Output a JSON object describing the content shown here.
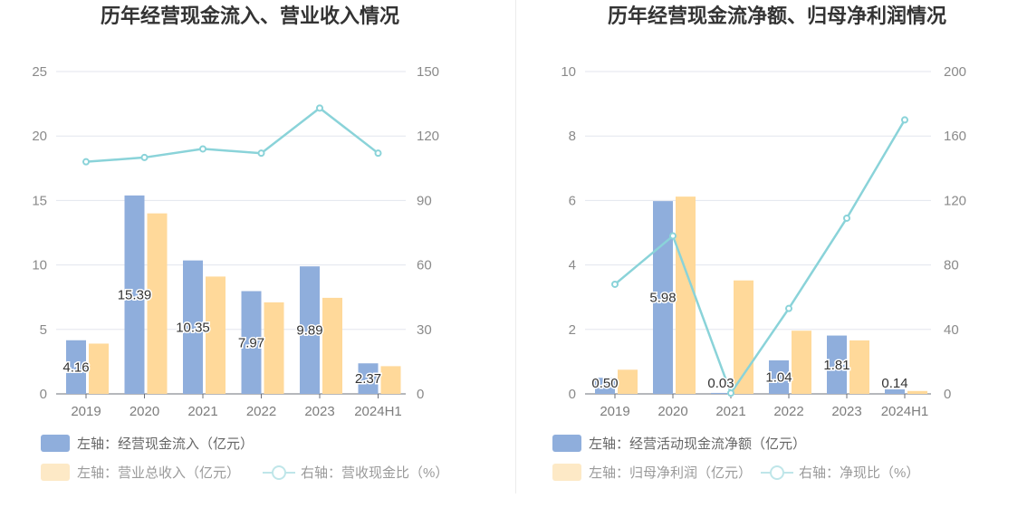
{
  "chart_data": [
    {
      "type": "bar",
      "title": "历年经营现金流入、营业收入情况",
      "categories": [
        "2019",
        "2020",
        "2021",
        "2022",
        "2023",
        "2024H1"
      ],
      "left_ylim": [
        0,
        25
      ],
      "left_ticks": [
        "0",
        "5",
        "10",
        "15",
        "20",
        "25"
      ],
      "right_ylim": [
        0,
        150
      ],
      "right_ticks": [
        "0",
        "30",
        "60",
        "90",
        "120",
        "150"
      ],
      "grid": true,
      "legend_position": "bottom-left",
      "series": [
        {
          "name": "左轴：经营现金流入（亿元）",
          "axis": "left",
          "kind": "bar",
          "color": "#8FAEDC",
          "values": [
            4.16,
            15.39,
            10.35,
            7.97,
            9.89,
            2.37
          ],
          "labels": [
            "4.16",
            "15.39",
            "10.35",
            "7.97",
            "9.89",
            "2.37"
          ]
        },
        {
          "name": "左轴：营业总收入（亿元）",
          "axis": "left",
          "kind": "bar",
          "color": "#FFD99A",
          "values": [
            3.9,
            14.0,
            9.1,
            7.1,
            7.45,
            2.15
          ]
        },
        {
          "name": "右轴：营收现金比（%）",
          "axis": "right",
          "kind": "line",
          "color": "#8AD3D9",
          "values": [
            108,
            110,
            114,
            112,
            133,
            112
          ]
        }
      ]
    },
    {
      "type": "bar",
      "title": "历年经营现金流净额、归母净利润情况",
      "categories": [
        "2019",
        "2020",
        "2021",
        "2022",
        "2023",
        "2024H1"
      ],
      "left_ylim": [
        0,
        10
      ],
      "left_ticks": [
        "0",
        "2",
        "4",
        "6",
        "8",
        "10"
      ],
      "right_ylim": [
        0,
        200
      ],
      "right_ticks": [
        "0",
        "40",
        "80",
        "120",
        "160",
        "200"
      ],
      "grid": true,
      "legend_position": "bottom-left",
      "series": [
        {
          "name": "左轴：经营活动现金流净额（亿元）",
          "axis": "left",
          "kind": "bar",
          "color": "#8FAEDC",
          "values": [
            0.5,
            5.98,
            0.03,
            1.04,
            1.81,
            0.14
          ],
          "labels": [
            "0.50",
            "5.98",
            "0.03",
            "1.04",
            "1.81",
            "0.14"
          ]
        },
        {
          "name": "左轴：归母净利润（亿元）",
          "axis": "left",
          "kind": "bar",
          "color": "#FFD99A",
          "values": [
            0.75,
            6.12,
            3.52,
            1.96,
            1.66,
            0.09
          ]
        },
        {
          "name": "右轴：净现比（%）",
          "axis": "right",
          "kind": "line",
          "color": "#8AD3D9",
          "values": [
            68,
            98,
            0.5,
            53,
            109,
            170
          ]
        }
      ]
    }
  ]
}
